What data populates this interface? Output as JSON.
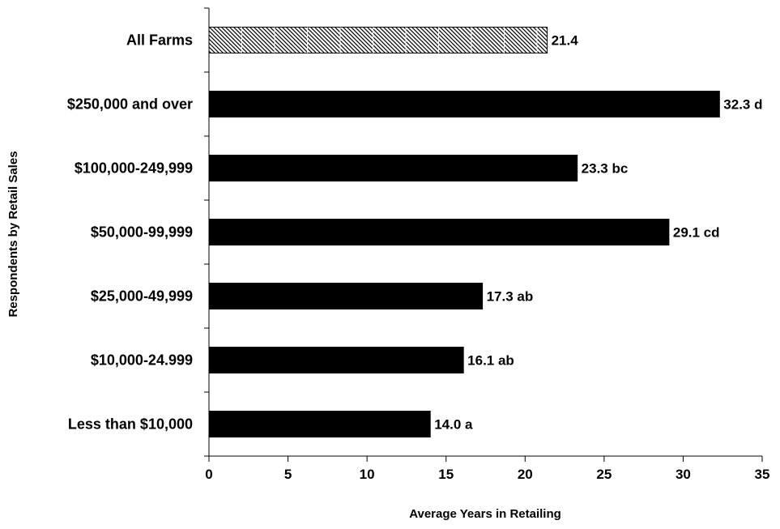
{
  "chart_data": {
    "type": "bar",
    "orientation": "horizontal",
    "title": "",
    "xlabel": "Average Years in Retailing",
    "ylabel": "Respondents by Retail Sales",
    "xlim": [
      0,
      35
    ],
    "x_ticks": [
      "0",
      "5",
      "10",
      "15",
      "20",
      "25",
      "30",
      "35"
    ],
    "grid": false,
    "legend": "none",
    "categories": [
      "All Farms",
      "$250,000 and over",
      "$100,000-249,999",
      "$50,000-99,999",
      "$25,000-49,999",
      "$10,000-24.999",
      "Less than $10,000"
    ],
    "values": [
      21.4,
      32.3,
      23.3,
      29.1,
      17.3,
      16.1,
      14.0
    ],
    "value_labels": [
      "21.4",
      "32.3 d",
      "23.3 bc",
      "29.1 cd",
      "17.3 ab",
      "16.1 ab",
      "14.0 a"
    ],
    "bar_styles": [
      "hatched",
      "solid",
      "solid",
      "solid",
      "solid",
      "solid",
      "solid"
    ],
    "colors": {
      "bar": "#000000",
      "background": "#ffffff",
      "axis": "#000000"
    }
  }
}
